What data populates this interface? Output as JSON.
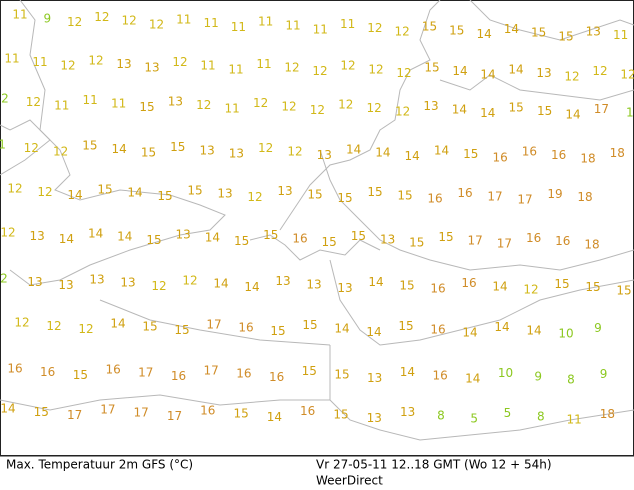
{
  "map": {
    "rows": [
      [
        11,
        9,
        12,
        12,
        12,
        12,
        11,
        11,
        11,
        11,
        11,
        11,
        11,
        12,
        12,
        15,
        15,
        14,
        14,
        15,
        15,
        13,
        11
      ],
      [
        11,
        11,
        12,
        12,
        13,
        13,
        12,
        11,
        11,
        11,
        12,
        12,
        12,
        12,
        12,
        15,
        14,
        14,
        14,
        13,
        12,
        12,
        12
      ],
      [
        2,
        12,
        11,
        11,
        11,
        15,
        13,
        12,
        11,
        12,
        12,
        12,
        12,
        12,
        12,
        13,
        14,
        14,
        15,
        15,
        14,
        17,
        1
      ],
      [
        1,
        12,
        12,
        15,
        14,
        15,
        15,
        13,
        13,
        12,
        12,
        13,
        14,
        14,
        14,
        14,
        15,
        16,
        16,
        16,
        18,
        18
      ],
      [
        12,
        12,
        14,
        15,
        14,
        15,
        15,
        13,
        12,
        13,
        15,
        15,
        15,
        15,
        16,
        16,
        17,
        17,
        19,
        18
      ],
      [
        12,
        13,
        14,
        14,
        14,
        15,
        13,
        14,
        15,
        15,
        16,
        15,
        15,
        13,
        15,
        15,
        17,
        17,
        16,
        16,
        18
      ],
      [
        2,
        13,
        13,
        13,
        13,
        12,
        12,
        14,
        14,
        13,
        13,
        13,
        14,
        15,
        16,
        16,
        14,
        12,
        15,
        15,
        15
      ],
      [
        12,
        12,
        12,
        14,
        15,
        15,
        17,
        16,
        15,
        15,
        14,
        14,
        15,
        16,
        14,
        14,
        14,
        10,
        9
      ],
      [
        16,
        16,
        15,
        16,
        17,
        16,
        17,
        16,
        16,
        15,
        15,
        13,
        14,
        16,
        14,
        10,
        9,
        8,
        9
      ],
      [
        14,
        15,
        17,
        17,
        17,
        17,
        16,
        15,
        14,
        16,
        15,
        13,
        13,
        8,
        5,
        5,
        8,
        11,
        18
      ]
    ],
    "value_colors": [
      {
        "min": 0,
        "color": "#8cc820"
      },
      {
        "min": 11,
        "color": "#d2b818"
      },
      {
        "min": 13,
        "color": "#d0a010"
      },
      {
        "min": 16,
        "color": "#d08c28"
      }
    ],
    "footer": {
      "left": "Max. Temperatuur 2m GFS (°C)",
      "right": "Vr 27-05-11 12..18 GMT (Wo 12 + 54h)",
      "source": "WeerDirect"
    }
  }
}
